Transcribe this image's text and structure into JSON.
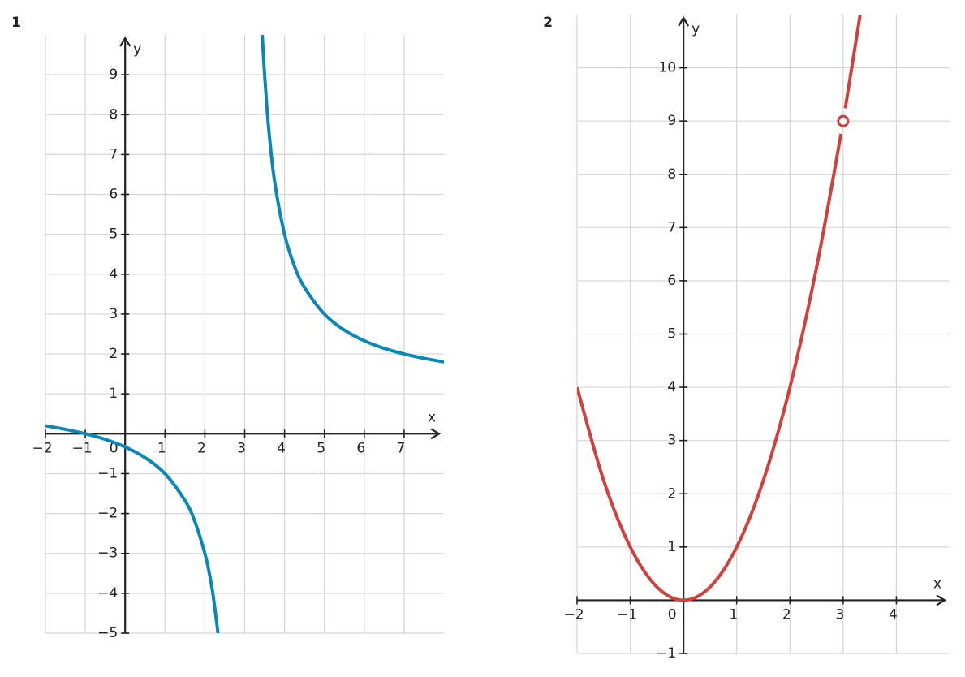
{
  "chart_data": [
    {
      "type": "line",
      "label": "1",
      "x_label": "x",
      "y_label": "y",
      "color": "#0a87b9",
      "grid": true,
      "xlim": [
        -2,
        8
      ],
      "ylim": [
        -5,
        10
      ],
      "xticks": [
        {
          "value": -2,
          "label": "−2"
        },
        {
          "value": -1,
          "label": "−1"
        },
        0,
        1,
        2,
        3,
        4,
        5,
        6,
        7
      ],
      "yticks": [
        {
          "value": -5,
          "label": "−5"
        },
        {
          "value": -4,
          "label": "−4"
        },
        {
          "value": -3,
          "label": "−3"
        },
        {
          "value": -2,
          "label": "−2"
        },
        {
          "value": -1,
          "label": "−1"
        },
        1,
        2,
        3,
        4,
        5,
        6,
        7,
        8,
        9
      ],
      "x": [
        -2,
        -1.5,
        -1,
        -0.5,
        0,
        0.5,
        1,
        1.5,
        1.75,
        2,
        2.1,
        2.2,
        2.33,
        3,
        3.44,
        3.5,
        3.6,
        3.75,
        4,
        4.25,
        4.5,
        5,
        5.5,
        6,
        6.5,
        7,
        7.5,
        8
      ],
      "values": [
        0.2,
        0.11,
        0,
        -0.14,
        -0.33,
        -0.6,
        -1,
        -1.67,
        -2.2,
        -3,
        -3.44,
        -4,
        -5,
        null,
        10,
        9,
        7.67,
        6.33,
        5,
        4.2,
        3.67,
        3,
        2.6,
        2.33,
        2.14,
        2,
        1.89,
        1.8
      ]
    },
    {
      "type": "line",
      "label": "2",
      "x_label": "x",
      "y_label": "y",
      "color": "#d0413e",
      "grid": true,
      "xlim": [
        -2,
        5
      ],
      "ylim": [
        -1,
        11
      ],
      "xticks": [
        {
          "value": -2,
          "label": "−2"
        },
        {
          "value": -1,
          "label": "−1"
        },
        0,
        1,
        2,
        3,
        4
      ],
      "yticks": [
        {
          "value": -1,
          "label": "−1"
        },
        1,
        2,
        3,
        4,
        5,
        6,
        7,
        8,
        9,
        10
      ],
      "x": [
        -2,
        -1.5,
        -1,
        -0.5,
        0,
        0.5,
        1,
        1.5,
        2,
        2.5,
        2.96,
        3,
        3.04,
        3.32
      ],
      "values": [
        4,
        2.25,
        1,
        0.25,
        0,
        0.25,
        1,
        2.25,
        4,
        6.25,
        8.76,
        null,
        9.24,
        11
      ],
      "hole": {
        "x": 3,
        "y": 9
      }
    }
  ]
}
